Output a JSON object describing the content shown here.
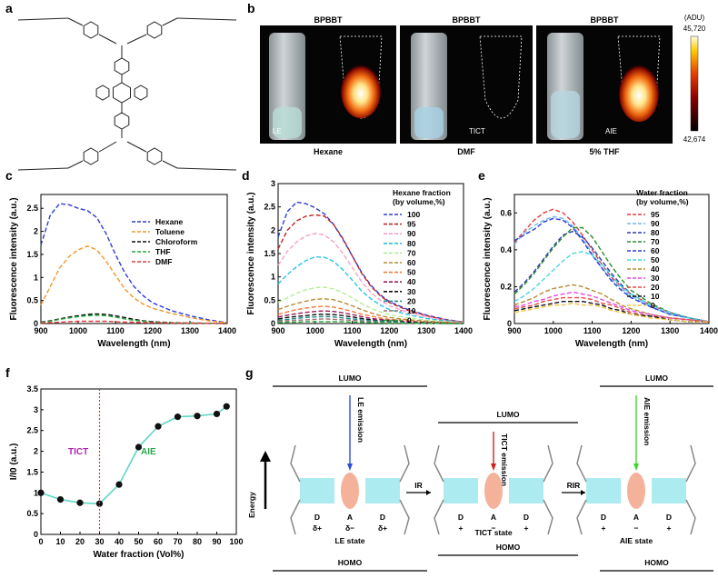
{
  "panel_labels": [
    "a",
    "b",
    "c",
    "d",
    "e",
    "f",
    "g"
  ],
  "panel_b": {
    "title": "BPBBT",
    "tiles": [
      {
        "mode": "LE",
        "solvent": "Hexane"
      },
      {
        "mode": "TICT",
        "solvent": "DMF"
      },
      {
        "mode": "AIE",
        "solvent": "5% THF"
      }
    ],
    "colorbar": {
      "unit": "(ADU)",
      "max": "45,720",
      "min": "42,674"
    }
  },
  "chart_data": [
    {
      "panel": "c",
      "type": "line",
      "xlabel": "Wavelength (nm)",
      "ylabel": "Fluorescence intensity (a.u.)",
      "xlim": [
        900,
        1400
      ],
      "ylim": [
        0,
        2.8
      ],
      "xticks": [
        900,
        1000,
        1100,
        1200,
        1300,
        1400
      ],
      "yticks": [
        0,
        0.5,
        1.0,
        1.5,
        2.0,
        2.5
      ],
      "x": [
        900,
        925,
        950,
        975,
        1000,
        1025,
        1050,
        1075,
        1100,
        1125,
        1150,
        1175,
        1200,
        1250,
        1300,
        1350,
        1400
      ],
      "legend_position": "top-right",
      "series": [
        {
          "name": "Hexane",
          "color": "#2b3bd8",
          "values": [
            1.7,
            2.35,
            2.6,
            2.58,
            2.5,
            2.45,
            2.3,
            1.95,
            1.5,
            1.1,
            0.8,
            0.6,
            0.45,
            0.28,
            0.17,
            0.08,
            0.02
          ]
        },
        {
          "name": "Toluene",
          "color": "#f0962b",
          "values": [
            0.4,
            0.8,
            1.2,
            1.45,
            1.6,
            1.68,
            1.6,
            1.35,
            1.05,
            0.75,
            0.55,
            0.42,
            0.33,
            0.22,
            0.13,
            0.06,
            0.02
          ]
        },
        {
          "name": "Chloroform",
          "color": "#111111",
          "values": [
            0.03,
            0.06,
            0.1,
            0.14,
            0.17,
            0.2,
            0.21,
            0.2,
            0.17,
            0.13,
            0.09,
            0.06,
            0.04,
            0.02,
            0.01,
            0.005,
            0
          ]
        },
        {
          "name": "THF",
          "color": "#22a83a",
          "values": [
            0.02,
            0.05,
            0.09,
            0.12,
            0.15,
            0.17,
            0.18,
            0.17,
            0.14,
            0.1,
            0.07,
            0.05,
            0.03,
            0.015,
            0.01,
            0.005,
            0
          ]
        },
        {
          "name": "DMF",
          "color": "#e23b3b",
          "values": [
            0.01,
            0.02,
            0.03,
            0.04,
            0.05,
            0.05,
            0.05,
            0.05,
            0.04,
            0.03,
            0.03,
            0.02,
            0.02,
            0.01,
            0.01,
            0.005,
            0
          ]
        }
      ]
    },
    {
      "panel": "d",
      "type": "line",
      "xlabel": "Wavelength (nm)",
      "ylabel": "Fluorescence intensity (a.u.)",
      "xlim": [
        900,
        1400
      ],
      "ylim": [
        0,
        3.0
      ],
      "xticks": [
        900,
        1000,
        1100,
        1200,
        1300,
        1400
      ],
      "yticks": [
        0,
        0.5,
        1.0,
        1.5,
        2.0,
        2.5,
        3.0
      ],
      "legend_title": [
        "Hexane fraction",
        "(by volume,%)"
      ],
      "legend_position": "top-right",
      "x": [
        900,
        925,
        950,
        975,
        1000,
        1025,
        1050,
        1075,
        1100,
        1125,
        1150,
        1175,
        1200,
        1250,
        1300,
        1350,
        1400
      ],
      "series": [
        {
          "name": "100",
          "color": "#2b3bd8",
          "values": [
            1.85,
            2.4,
            2.6,
            2.57,
            2.48,
            2.35,
            2.12,
            1.8,
            1.45,
            1.1,
            0.82,
            0.62,
            0.47,
            0.3,
            0.18,
            0.09,
            0.03
          ]
        },
        {
          "name": "95",
          "color": "#c02626",
          "values": [
            1.6,
            2.0,
            2.2,
            2.3,
            2.33,
            2.3,
            2.12,
            1.82,
            1.45,
            1.08,
            0.8,
            0.6,
            0.45,
            0.28,
            0.17,
            0.08,
            0.03
          ]
        },
        {
          "name": "90",
          "color": "#f4a0c8",
          "values": [
            1.25,
            1.55,
            1.75,
            1.88,
            1.93,
            1.9,
            1.75,
            1.5,
            1.2,
            0.9,
            0.67,
            0.5,
            0.38,
            0.24,
            0.14,
            0.07,
            0.02
          ]
        },
        {
          "name": "80",
          "color": "#26c3e8",
          "values": [
            0.85,
            1.05,
            1.22,
            1.35,
            1.43,
            1.42,
            1.33,
            1.15,
            0.93,
            0.7,
            0.53,
            0.4,
            0.3,
            0.19,
            0.11,
            0.06,
            0.02
          ]
        },
        {
          "name": "70",
          "color": "#b7ec9a",
          "values": [
            0.45,
            0.55,
            0.65,
            0.72,
            0.77,
            0.78,
            0.74,
            0.66,
            0.55,
            0.43,
            0.33,
            0.25,
            0.19,
            0.12,
            0.07,
            0.04,
            0.01
          ]
        },
        {
          "name": "60",
          "color": "#b88a34",
          "values": [
            0.3,
            0.37,
            0.43,
            0.48,
            0.52,
            0.53,
            0.51,
            0.45,
            0.38,
            0.3,
            0.23,
            0.17,
            0.13,
            0.08,
            0.05,
            0.03,
            0.01
          ]
        },
        {
          "name": "50",
          "color": "#f07a3a",
          "values": [
            0.2,
            0.25,
            0.3,
            0.33,
            0.36,
            0.37,
            0.35,
            0.31,
            0.26,
            0.2,
            0.16,
            0.12,
            0.09,
            0.06,
            0.03,
            0.02,
            0.01
          ]
        },
        {
          "name": "40",
          "color": "#9a1a5a",
          "values": [
            0.14,
            0.18,
            0.21,
            0.24,
            0.26,
            0.27,
            0.26,
            0.23,
            0.19,
            0.15,
            0.11,
            0.09,
            0.07,
            0.04,
            0.02,
            0.01,
            0
          ]
        },
        {
          "name": "30",
          "color": "#111111",
          "values": [
            0.1,
            0.13,
            0.15,
            0.17,
            0.19,
            0.2,
            0.19,
            0.17,
            0.14,
            0.11,
            0.08,
            0.06,
            0.05,
            0.03,
            0.02,
            0.01,
            0
          ]
        },
        {
          "name": "20",
          "color": "#1f8a8a",
          "values": [
            0.07,
            0.09,
            0.11,
            0.13,
            0.14,
            0.15,
            0.14,
            0.12,
            0.1,
            0.08,
            0.06,
            0.05,
            0.04,
            0.02,
            0.01,
            0.01,
            0
          ]
        },
        {
          "name": "10",
          "color": "#a07070",
          "values": [
            0.05,
            0.06,
            0.07,
            0.08,
            0.09,
            0.1,
            0.09,
            0.08,
            0.07,
            0.05,
            0.04,
            0.03,
            0.02,
            0.01,
            0.01,
            0,
            0
          ]
        },
        {
          "name": "0",
          "color": "#22a83a",
          "values": [
            0.02,
            0.03,
            0.03,
            0.04,
            0.04,
            0.04,
            0.04,
            0.04,
            0.03,
            0.03,
            0.02,
            0.02,
            0.01,
            0.01,
            0.005,
            0,
            0
          ]
        }
      ]
    },
    {
      "panel": "e",
      "type": "line",
      "xlabel": "Wavelength (nm)",
      "ylabel": "Fluorescence intensity (a.u.)",
      "xlim": [
        900,
        1400
      ],
      "ylim": [
        0,
        0.7
      ],
      "xticks": [
        900,
        1000,
        1100,
        1200,
        1300,
        1400
      ],
      "yticks": [
        0,
        0.2,
        0.4,
        0.6
      ],
      "legend_title": [
        "Water  fraction",
        "(by volume,%)"
      ],
      "legend_position": "top-right",
      "x": [
        900,
        925,
        950,
        975,
        1000,
        1025,
        1050,
        1075,
        1100,
        1125,
        1150,
        1175,
        1200,
        1250,
        1300,
        1350,
        1400
      ],
      "series": [
        {
          "name": "95",
          "color": "#e23b3b",
          "values": [
            0.44,
            0.5,
            0.56,
            0.6,
            0.62,
            0.6,
            0.55,
            0.48,
            0.4,
            0.32,
            0.25,
            0.2,
            0.16,
            0.1,
            0.06,
            0.03,
            0.01
          ]
        },
        {
          "name": "90",
          "color": "#6fb8e6",
          "values": [
            0.43,
            0.49,
            0.53,
            0.56,
            0.58,
            0.57,
            0.53,
            0.46,
            0.38,
            0.3,
            0.24,
            0.19,
            0.15,
            0.09,
            0.05,
            0.03,
            0.01
          ]
        },
        {
          "name": "80",
          "color": "#2f3aa8",
          "values": [
            0.17,
            0.22,
            0.28,
            0.35,
            0.42,
            0.48,
            0.5,
            0.47,
            0.41,
            0.34,
            0.27,
            0.21,
            0.16,
            0.1,
            0.06,
            0.03,
            0.01
          ]
        },
        {
          "name": "70",
          "color": "#2e8a2e",
          "values": [
            0.16,
            0.21,
            0.27,
            0.34,
            0.41,
            0.47,
            0.52,
            0.52,
            0.47,
            0.39,
            0.31,
            0.24,
            0.18,
            0.11,
            0.06,
            0.03,
            0.01
          ]
        },
        {
          "name": "60",
          "color": "#2b3bd8",
          "values": [
            0.45,
            0.48,
            0.51,
            0.55,
            0.57,
            0.56,
            0.52,
            0.45,
            0.37,
            0.3,
            0.23,
            0.18,
            0.14,
            0.09,
            0.05,
            0.03,
            0.01
          ]
        },
        {
          "name": "50",
          "color": "#4ad6e0",
          "values": [
            0.12,
            0.15,
            0.19,
            0.24,
            0.29,
            0.34,
            0.38,
            0.39,
            0.37,
            0.32,
            0.26,
            0.2,
            0.16,
            0.1,
            0.06,
            0.03,
            0.01
          ]
        },
        {
          "name": "40",
          "color": "#b88a34",
          "values": [
            0.1,
            0.12,
            0.14,
            0.17,
            0.19,
            0.2,
            0.21,
            0.2,
            0.18,
            0.16,
            0.13,
            0.1,
            0.08,
            0.05,
            0.03,
            0.02,
            0.01
          ]
        },
        {
          "name": "30",
          "color": "#e34be0",
          "values": [
            0.09,
            0.1,
            0.12,
            0.13,
            0.15,
            0.16,
            0.17,
            0.16,
            0.15,
            0.13,
            0.11,
            0.09,
            0.07,
            0.05,
            0.03,
            0.02,
            0.01
          ]
        },
        {
          "name": "20",
          "color": "#e24b4b",
          "values": [
            0.08,
            0.09,
            0.1,
            0.12,
            0.13,
            0.14,
            0.14,
            0.14,
            0.13,
            0.11,
            0.1,
            0.08,
            0.06,
            0.04,
            0.03,
            0.02,
            0.01
          ]
        },
        {
          "name": "10",
          "color": "#111111",
          "values": [
            0.07,
            0.08,
            0.09,
            0.1,
            0.11,
            0.12,
            0.12,
            0.12,
            0.11,
            0.1,
            0.08,
            0.07,
            0.05,
            0.04,
            0.02,
            0.01,
            0.01
          ]
        },
        {
          "name": "0",
          "color": "#f2c64b",
          "values": [
            0.06,
            0.07,
            0.08,
            0.09,
            0.1,
            0.1,
            0.11,
            0.1,
            0.1,
            0.09,
            0.07,
            0.06,
            0.05,
            0.03,
            0.02,
            0.01,
            0.01
          ]
        }
      ]
    },
    {
      "panel": "f",
      "type": "line",
      "xlabel": "Water  fraction (Vol%)",
      "ylabel": "I/I0 (a.u.)",
      "xlim": [
        0,
        100
      ],
      "ylim": [
        0,
        3.5
      ],
      "xticks": [
        0,
        10,
        20,
        30,
        40,
        50,
        60,
        70,
        80,
        90,
        100
      ],
      "yticks": [
        0,
        0.5,
        1.0,
        1.5,
        2.0,
        2.5,
        3.0,
        3.5
      ],
      "x": [
        0,
        10,
        20,
        30,
        40,
        50,
        60,
        70,
        80,
        90,
        95
      ],
      "series": [
        {
          "color": "#5fd6c4",
          "values": [
            1.0,
            0.84,
            0.76,
            0.74,
            1.2,
            2.1,
            2.6,
            2.83,
            2.85,
            2.9,
            3.08
          ]
        }
      ],
      "divider_x": 30,
      "annotations": [
        {
          "text": "TICT",
          "color": "#b026b0"
        },
        {
          "text": "AIE",
          "color": "#2aa84a"
        }
      ]
    }
  ],
  "panel_g": {
    "energy_label": "Energy",
    "lumo": "LUMO",
    "homo": "HOMO",
    "states": [
      {
        "name": "LE state",
        "emission": "LE emission",
        "labels": [
          "D",
          "A",
          "D"
        ],
        "charges": [
          "δ+",
          "δ−",
          "δ+"
        ]
      },
      {
        "name": "TICT state",
        "emission": "TICT emission",
        "labels": [
          "D",
          "A",
          "D"
        ],
        "charges": [
          "+",
          "−",
          "+"
        ]
      },
      {
        "name": "AIE state",
        "emission": "AIE emission",
        "labels": [
          "D",
          "A",
          "D"
        ],
        "charges": [
          "+",
          "−",
          "+"
        ]
      }
    ],
    "transitions": [
      "IR",
      "RIR"
    ]
  }
}
